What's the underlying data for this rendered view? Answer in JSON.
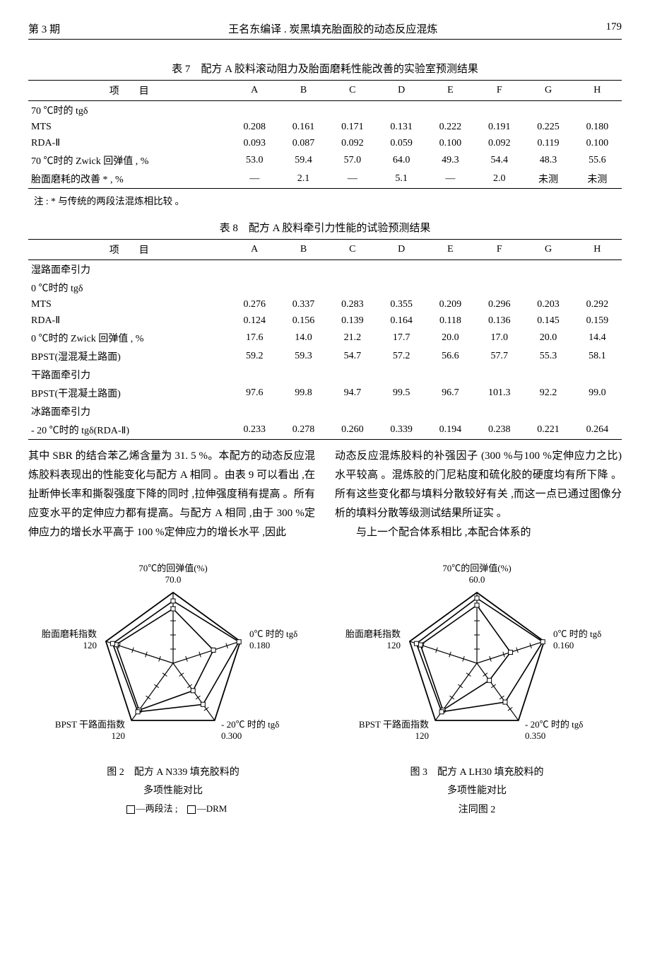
{
  "header": {
    "issue": "第 3 期",
    "title": "王名东编译 . 炭黑填充胎面胶的动态反应混炼",
    "page": "179"
  },
  "table7": {
    "title": "表 7　配方 A 胶料滚动阻力及胎面磨耗性能改善的实验室预测结果",
    "col_item": "项　　目",
    "columns": [
      "A",
      "B",
      "C",
      "D",
      "E",
      "F",
      "G",
      "H"
    ],
    "rows": [
      {
        "label": "70 ℃时的 tgδ",
        "indent": 0,
        "values": [
          "",
          "",
          "",
          "",
          "",
          "",
          "",
          ""
        ]
      },
      {
        "label": "MTS",
        "indent": 1,
        "values": [
          "0.208",
          "0.161",
          "0.171",
          "0.131",
          "0.222",
          "0.191",
          "0.225",
          "0.180"
        ]
      },
      {
        "label": "RDA-Ⅱ",
        "indent": 1,
        "values": [
          "0.093",
          "0.087",
          "0.092",
          "0.059",
          "0.100",
          "0.092",
          "0.119",
          "0.100"
        ]
      },
      {
        "label": "70 ℃时的 Zwick 回弹值 , %",
        "indent": 0,
        "values": [
          "53.0",
          "59.4",
          "57.0",
          "64.0",
          "49.3",
          "54.4",
          "48.3",
          "55.6"
        ]
      },
      {
        "label": "胎面磨耗的改善 * , %",
        "indent": 0,
        "values": [
          "—",
          "2.1",
          "—",
          "5.1",
          "—",
          "2.0",
          "未测",
          "未测"
        ],
        "last": true
      }
    ],
    "note": "注 : * 与传统的两段法混炼相比较 。"
  },
  "table8": {
    "title": "表 8　配方 A 胶料牵引力性能的试验预测结果",
    "col_item": "项　　目",
    "columns": [
      "A",
      "B",
      "C",
      "D",
      "E",
      "F",
      "G",
      "H"
    ],
    "rows": [
      {
        "label": "湿路面牵引力",
        "indent": 0,
        "values": [
          "",
          "",
          "",
          "",
          "",
          "",
          "",
          ""
        ]
      },
      {
        "label": "0 ℃时的 tgδ",
        "indent": 1,
        "values": [
          "",
          "",
          "",
          "",
          "",
          "",
          "",
          ""
        ]
      },
      {
        "label": "MTS",
        "indent": 2,
        "values": [
          "0.276",
          "0.337",
          "0.283",
          "0.355",
          "0.209",
          "0.296",
          "0.203",
          "0.292"
        ]
      },
      {
        "label": "RDA-Ⅱ",
        "indent": 2,
        "values": [
          "0.124",
          "0.156",
          "0.139",
          "0.164",
          "0.118",
          "0.136",
          "0.145",
          "0.159"
        ]
      },
      {
        "label": "0 ℃时的 Zwick 回弹值 , %",
        "indent": 1,
        "values": [
          "17.6",
          "14.0",
          "21.2",
          "17.7",
          "20.0",
          "17.0",
          "20.0",
          "14.4"
        ]
      },
      {
        "label": "BPST(湿混凝土路面)",
        "indent": 1,
        "values": [
          "59.2",
          "59.3",
          "54.7",
          "57.2",
          "56.6",
          "57.7",
          "55.3",
          "58.1"
        ]
      },
      {
        "label": "干路面牵引力",
        "indent": 0,
        "values": [
          "",
          "",
          "",
          "",
          "",
          "",
          "",
          ""
        ]
      },
      {
        "label": "BPST(干混凝土路面)",
        "indent": 1,
        "values": [
          "97.6",
          "99.8",
          "94.7",
          "99.5",
          "96.7",
          "101.3",
          "92.2",
          "99.0"
        ]
      },
      {
        "label": "冰路面牵引力",
        "indent": 0,
        "values": [
          "",
          "",
          "",
          "",
          "",
          "",
          "",
          ""
        ]
      },
      {
        "label": "- 20 ℃时的 tgδ(RDA-Ⅱ)",
        "indent": 1,
        "values": [
          "0.233",
          "0.278",
          "0.260",
          "0.339",
          "0.194",
          "0.238",
          "0.221",
          "0.264"
        ],
        "last": true
      }
    ]
  },
  "body": {
    "col1": "其中 SBR 的结合苯乙烯含量为 31. 5 %。本配方的动态反应混炼胶料表现出的性能变化与配方 A 相同 。由表 9 可以看出 ,在扯断伸长率和撕裂强度下降的同时 ,拉伸强度稍有提高 。所有应变水平的定伸应力都有提高。与配方 A 相同 ,由于 300 %定伸应力的增长水平高于 100 %定伸应力的增长水平 ,因此",
    "col2a": "动态反应混炼胶料的补强因子 (300 %与100 %定伸应力之比) 水平较高 。混炼胶的门尼粘度和硫化胶的硬度均有所下降 。所有这些变化都与填料分散较好有关 ,而这一点已通过图像分析的填料分散等级测试结果所证实 。",
    "col2b": "与上一个配合体系相比 ,本配合体系的"
  },
  "fig2": {
    "type": "radar-pentagon",
    "caption1": "图 2　配方 A N339 填充胶料的",
    "caption2": "多项性能对比",
    "legend_a": "—两段法 ;",
    "legend_b": "—DRM",
    "axes": [
      {
        "label1": "70℃的回弹值(%)",
        "label2": "70.0"
      },
      {
        "label1": "0℃ 时的 tgδ",
        "label2": "0.180"
      },
      {
        "label1": "- 20℃ 时的 tgδ",
        "label2": "0.300"
      },
      {
        "label1": "BPST 干路面指数",
        "label2": "120"
      },
      {
        "label1": "胎面磨耗指数",
        "label2": "120"
      }
    ],
    "line_color": "#000000",
    "line_width_grid": 1.2,
    "line_width_series": 1.6,
    "series": [
      {
        "name": "两段法",
        "values": [
          0.77,
          0.6,
          0.48,
          0.82,
          0.85
        ]
      },
      {
        "name": "DRM",
        "values": [
          0.88,
          0.98,
          0.72,
          0.85,
          0.9
        ]
      }
    ]
  },
  "fig3": {
    "type": "radar-pentagon",
    "caption1": "图 3　配方 A LH30 填充胶料的",
    "caption2": "多项性能对比",
    "note": "注同图 2",
    "axes": [
      {
        "label1": "70℃的回弹值(%)",
        "label2": "60.0"
      },
      {
        "label1": "0℃ 时的 tgδ",
        "label2": "0.160"
      },
      {
        "label1": "- 20℃ 时的 tgδ",
        "label2": "0.350"
      },
      {
        "label1": "BPST 干路面指数",
        "label2": "120"
      },
      {
        "label1": "胎面磨耗指数",
        "label2": "120"
      }
    ],
    "line_color": "#000000",
    "line_width_grid": 1.2,
    "line_width_series": 1.6,
    "series": [
      {
        "name": "两段法",
        "values": [
          0.82,
          0.5,
          0.3,
          0.82,
          0.84
        ]
      },
      {
        "name": "DRM",
        "values": [
          0.92,
          0.98,
          0.68,
          0.85,
          0.9
        ]
      }
    ]
  }
}
